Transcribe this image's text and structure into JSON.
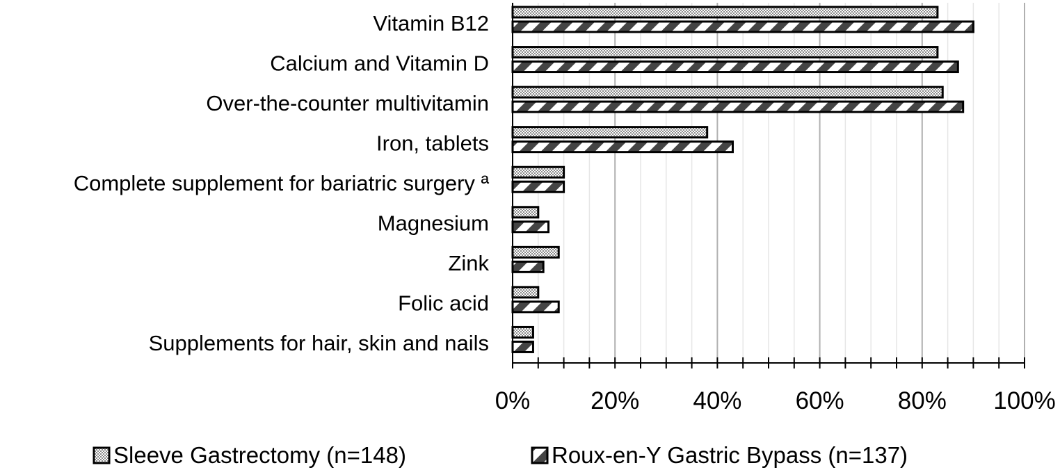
{
  "chart_data": {
    "type": "bar",
    "orientation": "horizontal",
    "categories": [
      "Vitamin B12",
      "Calcium and Vitamin D",
      "Over-the-counter multivitamin",
      "Iron, tablets",
      "Complete supplement for bariatric surgery ª",
      "Magnesium",
      "Zink",
      "Folic acid",
      "Supplements for hair, skin and nails"
    ],
    "series": [
      {
        "name": "Sleeve Gastrectomy (n=148)",
        "pattern": "dotted",
        "values": [
          83,
          83,
          84,
          38,
          10,
          5,
          9,
          5,
          4
        ]
      },
      {
        "name": "Roux-en-Y Gastric Bypass (n=137)",
        "pattern": "diagonal-hatch",
        "values": [
          90,
          87,
          88,
          43,
          10,
          7,
          6,
          9,
          4
        ]
      }
    ],
    "xlim": [
      0,
      100
    ],
    "x_ticks": [
      "0%",
      "20%",
      "40%",
      "60%",
      "80%",
      "100%"
    ],
    "x_tick_values": [
      0,
      20,
      40,
      60,
      80,
      100
    ],
    "grid": "vertical major and minor",
    "legend_position": "bottom",
    "title": "",
    "xlabel": "",
    "ylabel": "",
    "colors": {
      "bar_edge": "#000000",
      "hatch": "#444444",
      "grid_major": "#b0b0b0",
      "grid_minor": "#e6e6e6"
    }
  }
}
